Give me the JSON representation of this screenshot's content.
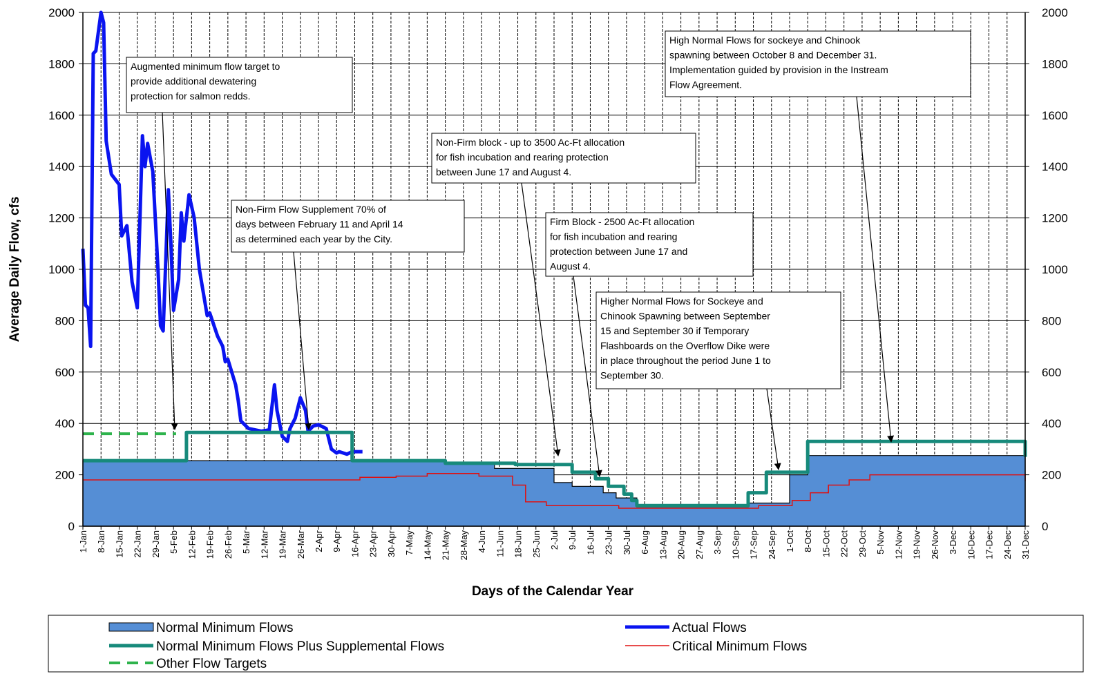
{
  "chart_data": {
    "type": "line",
    "xlabel": "Days of the Calendar Year",
    "ylabel": "Average Daily Flow, cfs",
    "xlim": [
      1,
      365
    ],
    "xticks": [
      {
        "value": 1,
        "label": "1-Jan"
      },
      {
        "value": 8,
        "label": "8-Jan"
      },
      {
        "value": 15,
        "label": "15-Jan"
      },
      {
        "value": 22,
        "label": "22-Jan"
      },
      {
        "value": 29,
        "label": "29-Jan"
      },
      {
        "value": 36,
        "label": "5-Feb"
      },
      {
        "value": 43,
        "label": "12-Feb"
      },
      {
        "value": 50,
        "label": "19-Feb"
      },
      {
        "value": 57,
        "label": "26-Feb"
      },
      {
        "value": 64,
        "label": "5-Mar"
      },
      {
        "value": 71,
        "label": "12-Mar"
      },
      {
        "value": 78,
        "label": "19-Mar"
      },
      {
        "value": 85,
        "label": "26-Mar"
      },
      {
        "value": 92,
        "label": "2-Apr"
      },
      {
        "value": 99,
        "label": "9-Apr"
      },
      {
        "value": 106,
        "label": "16-Apr"
      },
      {
        "value": 113,
        "label": "23-Apr"
      },
      {
        "value": 120,
        "label": "30-Apr"
      },
      {
        "value": 127,
        "label": "7-May"
      },
      {
        "value": 134,
        "label": "14-May"
      },
      {
        "value": 141,
        "label": "21-May"
      },
      {
        "value": 148,
        "label": "28-May"
      },
      {
        "value": 155,
        "label": "4-Jun"
      },
      {
        "value": 162,
        "label": "11-Jun"
      },
      {
        "value": 169,
        "label": "18-Jun"
      },
      {
        "value": 176,
        "label": "25-Jun"
      },
      {
        "value": 183,
        "label": "2-Jul"
      },
      {
        "value": 190,
        "label": "9-Jul"
      },
      {
        "value": 197,
        "label": "16-Jul"
      },
      {
        "value": 204,
        "label": "23-Jul"
      },
      {
        "value": 211,
        "label": "30-Jul"
      },
      {
        "value": 218,
        "label": "6-Aug"
      },
      {
        "value": 225,
        "label": "13-Aug"
      },
      {
        "value": 232,
        "label": "20-Aug"
      },
      {
        "value": 239,
        "label": "27-Aug"
      },
      {
        "value": 246,
        "label": "3-Sep"
      },
      {
        "value": 253,
        "label": "10-Sep"
      },
      {
        "value": 260,
        "label": "17-Sep"
      },
      {
        "value": 267,
        "label": "24-Sep"
      },
      {
        "value": 274,
        "label": "1-Oct"
      },
      {
        "value": 281,
        "label": "8-Oct"
      },
      {
        "value": 288,
        "label": "15-Oct"
      },
      {
        "value": 295,
        "label": "22-Oct"
      },
      {
        "value": 302,
        "label": "29-Oct"
      },
      {
        "value": 309,
        "label": "5-Nov"
      },
      {
        "value": 316,
        "label": "12-Nov"
      },
      {
        "value": 323,
        "label": "19-Nov"
      },
      {
        "value": 330,
        "label": "26-Nov"
      },
      {
        "value": 337,
        "label": "3-Dec"
      },
      {
        "value": 344,
        "label": "10-Dec"
      },
      {
        "value": 351,
        "label": "17-Dec"
      },
      {
        "value": 358,
        "label": "24-Dec"
      },
      {
        "value": 365,
        "label": "31-Dec"
      }
    ],
    "ylim": [
      0,
      2000
    ],
    "yticks": [
      0,
      200,
      400,
      600,
      800,
      1000,
      1200,
      1400,
      1600,
      1800,
      2000
    ],
    "y2lim": [
      0,
      2000
    ],
    "y2ticks": [
      0,
      200,
      400,
      600,
      800,
      1000,
      1200,
      1400,
      1600,
      1800,
      2000
    ],
    "grid": true,
    "legend": "bottom",
    "series": [
      {
        "name": "Normal Minimum Flows",
        "kind": "area",
        "step": true,
        "color": "#558ed5",
        "x": [
          1,
          141,
          160,
          183,
          190,
          202,
          207,
          215,
          258,
          274,
          281,
          365
        ],
        "values": [
          255,
          245,
          225,
          170,
          155,
          130,
          110,
          75,
          90,
          200,
          275,
          275
        ]
      },
      {
        "name": "Actual Flows",
        "kind": "line",
        "step": false,
        "color": "#0a14f0",
        "x": [
          1,
          2,
          3,
          4,
          5,
          6,
          8,
          9,
          10,
          12,
          15,
          16,
          18,
          20,
          22,
          24,
          25,
          26,
          28,
          30,
          31,
          32,
          34,
          35,
          36,
          38,
          39,
          40,
          42,
          44,
          46,
          49,
          50,
          53,
          55,
          56,
          57,
          60,
          61,
          62,
          65,
          70,
          73,
          75,
          76,
          78,
          80,
          81,
          83,
          85,
          87,
          88,
          90,
          92,
          95,
          97,
          99,
          100,
          103,
          105,
          109
        ],
        "values": [
          1080,
          860,
          850,
          700,
          1840,
          1850,
          2000,
          1960,
          1500,
          1370,
          1330,
          1130,
          1170,
          950,
          850,
          1520,
          1400,
          1490,
          1380,
          1000,
          780,
          760,
          1310,
          1100,
          840,
          960,
          1220,
          1110,
          1290,
          1200,
          1000,
          820,
          830,
          740,
          700,
          640,
          650,
          550,
          490,
          410,
          380,
          370,
          375,
          550,
          450,
          350,
          330,
          380,
          420,
          500,
          450,
          370,
          390,
          395,
          380,
          300,
          285,
          290,
          280,
          290,
          290
        ]
      },
      {
        "name": "Normal Minimum Flows Plus Supplemental Flows",
        "kind": "line",
        "step": true,
        "color": "#178a7b",
        "x": [
          1,
          41,
          105,
          141,
          168,
          190,
          199,
          204,
          210,
          213,
          215,
          258,
          265,
          281,
          364,
          365
        ],
        "values": [
          255,
          365,
          255,
          245,
          240,
          210,
          185,
          155,
          125,
          100,
          80,
          130,
          210,
          330,
          330,
          270
        ]
      },
      {
        "name": "Critical Minimum Flows",
        "kind": "line",
        "step": true,
        "color": "#e01010",
        "x": [
          1,
          108,
          122,
          134,
          154,
          167,
          172,
          180,
          208,
          262,
          275,
          282,
          289,
          297,
          305,
          364,
          365
        ],
        "values": [
          180,
          190,
          195,
          205,
          195,
          160,
          95,
          80,
          70,
          80,
          100,
          130,
          160,
          180,
          200,
          200,
          175
        ]
      },
      {
        "name": "Other Flow Targets",
        "kind": "dashed",
        "step": false,
        "color": "#2eb34c",
        "x": [
          1,
          37
        ],
        "values": [
          360,
          360
        ]
      }
    ],
    "annotations": [
      [
        "Augmented minimum  flow target to",
        "provide additional dewatering",
        "protection for salmon redds."
      ],
      [
        "Non-Firm Flow Supplement 70% of",
        "days between February 11 and April 14",
        "as determined  each year by the City."
      ],
      [
        "Non-Firm block - up to 3500 Ac-Ft allocation",
        "for fish incubation and rearing protection",
        "between June 17 and August 4."
      ],
      [
        "Firm Block - 2500 Ac-Ft allocation",
        "for fish incubation and rearing",
        "protection between June 17 and",
        "August 4."
      ],
      [
        "Higher Normal  Flows for Sockeye and",
        "Chinook Spawning between September",
        "15 and September 30 if Temporary",
        "Flashboards on the Overflow Dike were",
        "in place throughout the period June 1 to",
        "September 30."
      ],
      [
        "High Normal Flows for sockeye and Chinook",
        "spawning between October 8 and December 31.",
        "Implementation  guided by provision in the Instream",
        "Flow Agreement."
      ]
    ]
  }
}
